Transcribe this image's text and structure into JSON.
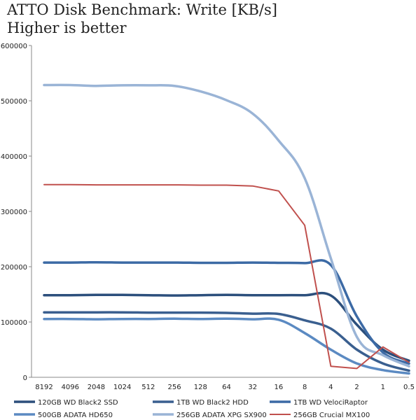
{
  "chart_data": {
    "type": "line",
    "title": "ATTO Disk Benchmark: Write [KB/s]",
    "subtitle": "Higher is better",
    "xlabel": "",
    "ylabel": "",
    "ylim": [
      0,
      600000
    ],
    "y_ticks": [
      "0",
      "100000",
      "200000",
      "300000",
      "400000",
      "500000",
      "600000"
    ],
    "categories": [
      "8192",
      "4096",
      "2048",
      "1024",
      "512",
      "256",
      "128",
      "64",
      "32",
      "16",
      "8",
      "4",
      "2",
      "1",
      "0.5"
    ],
    "grid": false,
    "legend_position": "bottom",
    "series": [
      {
        "name": "120GB WD Black2 SSD",
        "color": "#2c4f7c",
        "values": [
          148500,
          148500,
          149000,
          149000,
          148500,
          148000,
          148500,
          149000,
          148500,
          148500,
          148500,
          148000,
          95000,
          50000,
          30000
        ]
      },
      {
        "name": "1TB WD Black2 HDD",
        "color": "#3a5f8f",
        "values": [
          117500,
          117500,
          117500,
          117500,
          117000,
          117000,
          117000,
          116500,
          115000,
          114500,
          103000,
          88000,
          50000,
          25000,
          12000
        ]
      },
      {
        "name": "1TB WD VelociRaptor",
        "color": "#3c6aa5",
        "values": [
          207500,
          207500,
          208000,
          207500,
          207500,
          207500,
          207000,
          207000,
          207500,
          207000,
          206500,
          203000,
          110000,
          45000,
          25000
        ]
      },
      {
        "name": "500GB ADATA HD650",
        "color": "#5b8ac2",
        "values": [
          105500,
          105500,
          105000,
          105500,
          105500,
          106000,
          105500,
          106000,
          105000,
          104000,
          80000,
          50000,
          25000,
          13000,
          7000
        ]
      },
      {
        "name": "256GB ADATA XPG SX900",
        "color": "#9ab4d6",
        "values": [
          528500,
          528500,
          527000,
          528000,
          528000,
          527000,
          517000,
          501000,
          477000,
          428000,
          360000,
          215000,
          73000,
          40000,
          20000
        ]
      },
      {
        "name": "256GB Crucial MX100",
        "color": "#c0504d",
        "values": [
          348500,
          348500,
          348000,
          348000,
          348000,
          348000,
          347500,
          347500,
          346000,
          337000,
          275000,
          20000,
          16000,
          55000,
          27000
        ]
      }
    ]
  }
}
